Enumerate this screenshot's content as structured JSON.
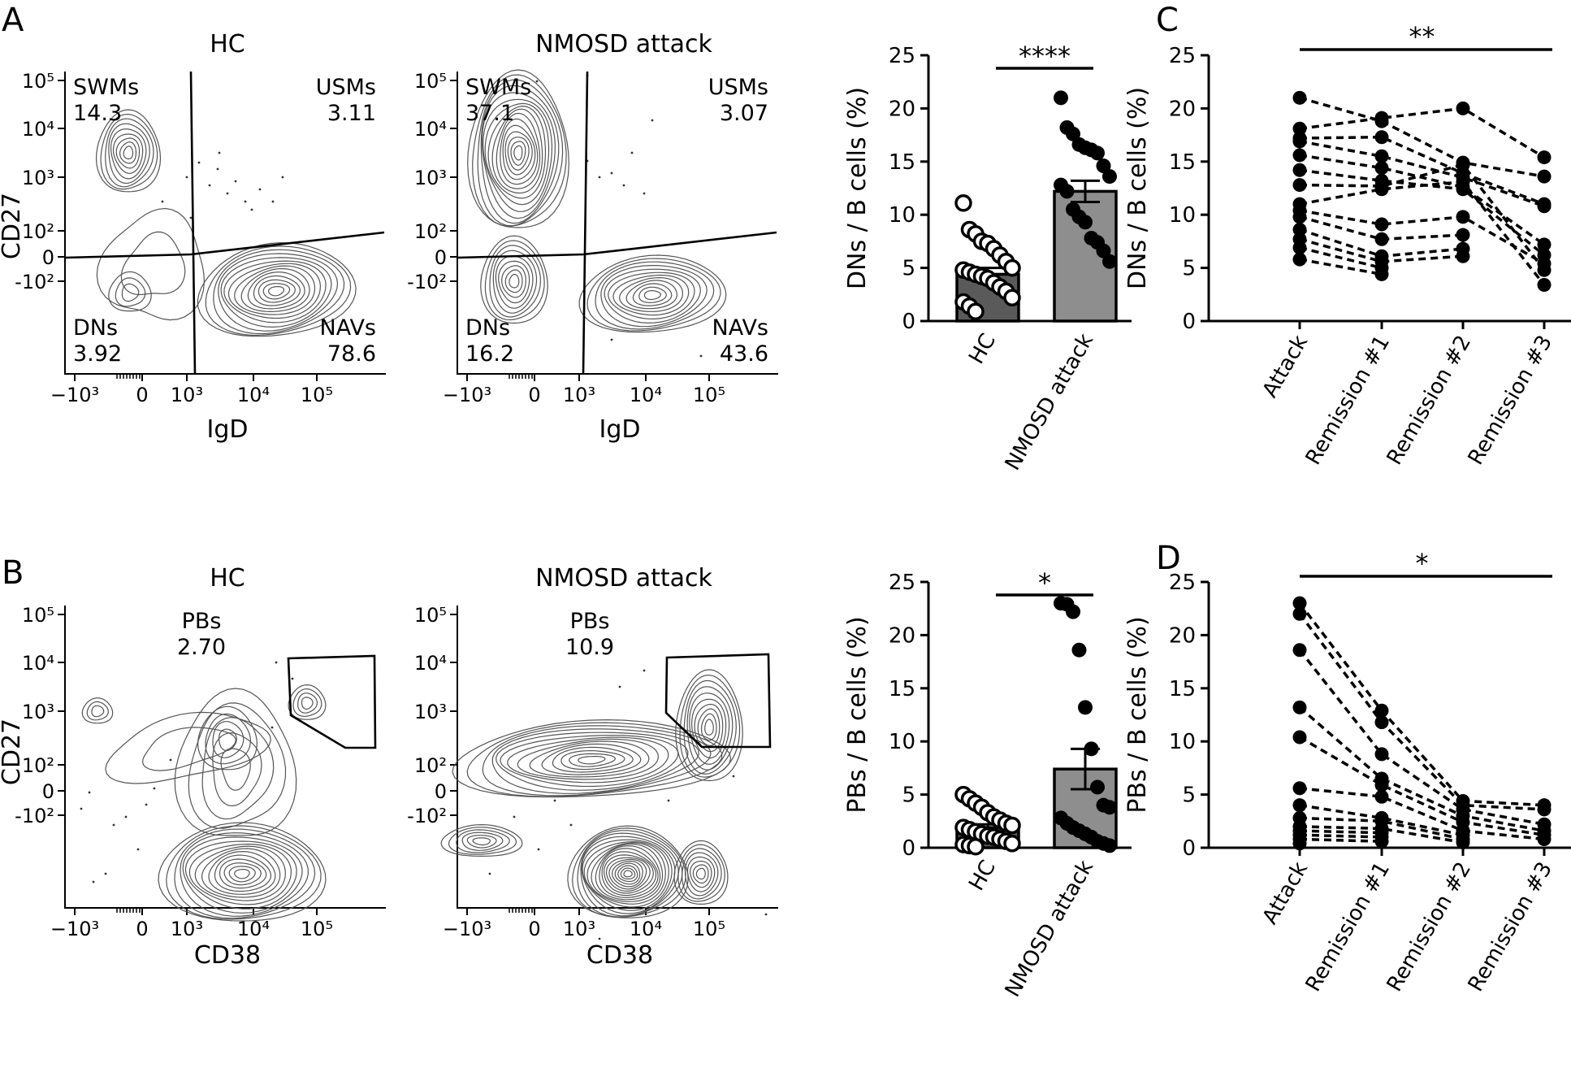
{
  "panels": {
    "A": "A",
    "B": "B",
    "C": "C",
    "D": "D"
  },
  "flow": {
    "a_hc": {
      "title": "HC",
      "xlabel": "IgD",
      "ylabel": "CD27",
      "quadrants": [
        {
          "name": "SWMs",
          "value": "14.3"
        },
        {
          "name": "USMs",
          "value": "3.11"
        },
        {
          "name": "DNs",
          "value": "3.92"
        },
        {
          "name": "NAVs",
          "value": "78.6"
        }
      ]
    },
    "a_nmosd": {
      "title": "NMOSD attack",
      "xlabel": "IgD",
      "ylabel": "",
      "quadrants": [
        {
          "name": "SWMs",
          "value": "37.1"
        },
        {
          "name": "USMs",
          "value": "3.07"
        },
        {
          "name": "DNs",
          "value": "16.2"
        },
        {
          "name": "NAVs",
          "value": "43.6"
        }
      ]
    },
    "b_hc": {
      "title": "HC",
      "xlabel": "CD38",
      "ylabel": "CD27",
      "gate": {
        "name": "PBs",
        "value": "2.70"
      }
    },
    "b_nmosd": {
      "title": "NMOSD attack",
      "xlabel": "CD38",
      "ylabel": "",
      "gate": {
        "name": "PBs",
        "value": "10.9"
      }
    },
    "x_ticks": [
      "−10³",
      "0",
      "10³",
      "10⁴",
      "10⁵"
    ],
    "y_ticks": [
      "10⁵",
      "10⁴",
      "10³",
      "10²",
      "0",
      "-10²"
    ]
  },
  "chart_data": [
    {
      "id": "A-bar",
      "type": "bar",
      "categories": [
        "HC",
        "NMOSD attack"
      ],
      "ylabel": "DNs / B cells (%)",
      "ylim": [
        0,
        25
      ],
      "yticks": [
        0,
        5,
        10,
        15,
        20,
        25
      ],
      "means": [
        4.4,
        12.2
      ],
      "sem": [
        0.6,
        1.0
      ],
      "significance": "****",
      "bar_colors": [
        "#5a5a5a",
        "#8e8e8e"
      ],
      "points": [
        [
          11.1,
          8.6,
          8.2,
          7.5,
          7.3,
          6.8,
          6.2,
          5.6,
          5.0,
          4.8,
          4.6,
          4.4,
          4.2,
          4.0,
          3.6,
          3.2,
          2.8,
          2.2,
          1.8,
          1.4,
          0.9
        ],
        [
          21.0,
          18.2,
          17.6,
          16.6,
          16.3,
          16.1,
          15.8,
          14.6,
          13.6,
          12.8,
          12.2,
          10.5,
          9.8,
          9.3,
          7.8,
          7.4,
          6.6,
          5.6
        ]
      ]
    },
    {
      "id": "C-line",
      "type": "line",
      "categories": [
        "Attack",
        "Remission #1",
        "Remission #2",
        "Remission #3"
      ],
      "ylabel": "DNs / B cells (%)",
      "ylim": [
        0,
        25
      ],
      "yticks": [
        0,
        5,
        10,
        15,
        20,
        25
      ],
      "significance": "**",
      "subjects": [
        [
          21.0,
          18.8,
          14.9,
          13.6
        ],
        [
          18.1,
          19.1,
          20.0,
          15.4
        ],
        [
          17.2,
          17.3,
          13.9,
          11.0
        ],
        [
          16.9,
          15.5,
          13.5,
          10.8
        ],
        [
          15.6,
          14.4,
          12.6,
          7.2
        ],
        [
          14.2,
          13.2,
          12.4,
          6.2
        ],
        [
          12.8,
          12.7,
          14.7,
          4.8
        ],
        [
          11.0,
          12.4,
          13.1,
          3.4
        ],
        [
          10.4,
          9.1,
          9.8,
          5.4
        ],
        [
          9.8,
          7.7,
          8.1,
          null
        ],
        [
          8.6,
          6.1,
          6.8,
          null
        ],
        [
          7.7,
          5.6,
          6.1,
          null
        ],
        [
          6.9,
          5.0,
          null,
          null
        ],
        [
          5.8,
          4.4,
          null,
          null
        ]
      ]
    },
    {
      "id": "B-bar",
      "type": "bar",
      "categories": [
        "HC",
        "NMOSD attack"
      ],
      "ylabel": "PBs / B cells (%)",
      "ylim": [
        0,
        25
      ],
      "yticks": [
        0,
        5,
        10,
        15,
        20,
        25
      ],
      "means": [
        1.9,
        7.4
      ],
      "sem": [
        0.3,
        1.9
      ],
      "significance": "*",
      "bar_colors": [
        "#5a5a5a",
        "#8e8e8e"
      ],
      "points": [
        [
          5.0,
          4.6,
          4.2,
          3.8,
          3.3,
          2.9,
          2.6,
          2.3,
          2.1,
          1.9,
          1.7,
          1.5,
          1.3,
          1.1,
          1.0,
          0.8,
          0.6,
          0.4,
          0.3,
          0.2,
          0.1
        ],
        [
          23.0,
          22.9,
          22.2,
          18.6,
          13.2,
          9.3,
          5.7,
          4.0,
          3.8,
          2.8,
          2.3,
          1.9,
          1.6,
          1.3,
          1.0,
          0.6,
          0.4,
          0.2
        ]
      ]
    },
    {
      "id": "D-line",
      "type": "line",
      "categories": [
        "Attack",
        "Remission #1",
        "Remission #2",
        "Remission #3"
      ],
      "ylabel": "PBs / B cells (%)",
      "ylim": [
        0,
        25
      ],
      "yticks": [
        0,
        5,
        10,
        15,
        20,
        25
      ],
      "significance": "*",
      "subjects": [
        [
          23.0,
          12.9,
          4.4,
          4.0
        ],
        [
          22.0,
          11.8,
          4.0,
          3.6
        ],
        [
          18.6,
          8.8,
          3.6,
          2.2
        ],
        [
          13.2,
          6.5,
          3.0,
          1.6
        ],
        [
          10.4,
          5.9,
          2.4,
          1.2
        ],
        [
          5.6,
          4.8,
          1.6,
          0.8
        ],
        [
          4.0,
          2.8,
          1.2,
          null
        ],
        [
          2.8,
          2.5,
          0.8,
          null
        ],
        [
          2.0,
          1.8,
          0.5,
          null
        ],
        [
          1.6,
          1.4,
          null,
          null
        ],
        [
          1.2,
          1.0,
          null,
          null
        ],
        [
          0.8,
          0.6,
          null,
          null
        ],
        [
          0.4,
          null,
          null,
          null
        ]
      ]
    }
  ]
}
